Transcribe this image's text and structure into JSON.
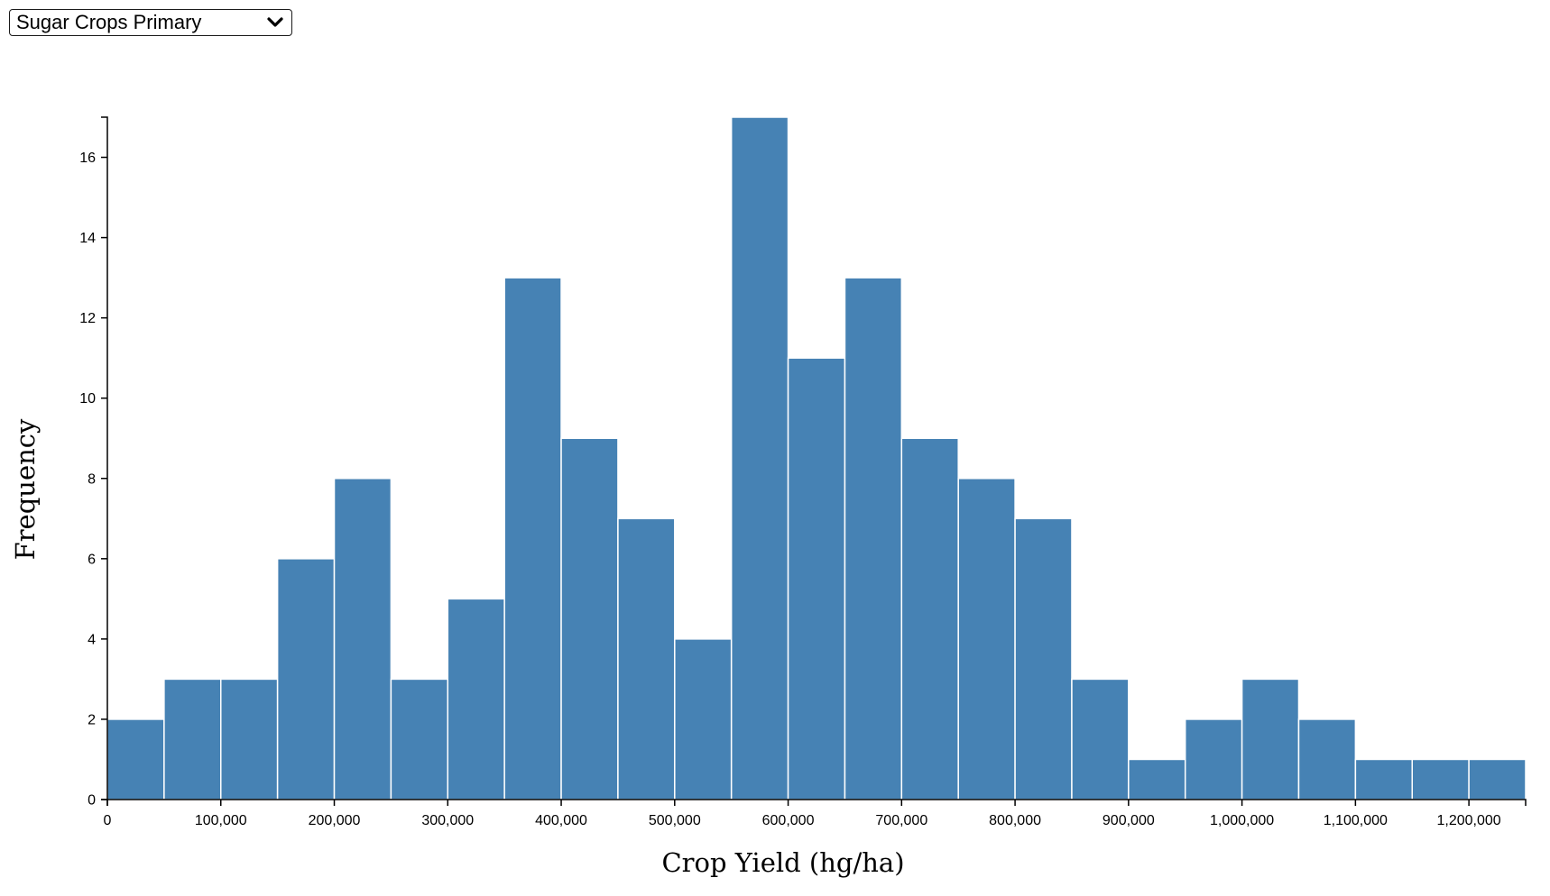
{
  "dropdown": {
    "selected": "Sugar Crops Primary",
    "icon": "chevron-down-icon"
  },
  "colors": {
    "bar": "#4682b4",
    "bar_stroke": "#ffffff",
    "axis": "#000000"
  },
  "chart_data": {
    "type": "bar",
    "subtype": "histogram",
    "xlabel": "Crop Yield (hg/ha)",
    "ylabel": "Frequency",
    "bin_width": 50000,
    "bins": [
      {
        "x0": 0,
        "x1": 50000,
        "count": 2
      },
      {
        "x0": 50000,
        "x1": 100000,
        "count": 3
      },
      {
        "x0": 100000,
        "x1": 150000,
        "count": 3
      },
      {
        "x0": 150000,
        "x1": 200000,
        "count": 6
      },
      {
        "x0": 200000,
        "x1": 250000,
        "count": 8
      },
      {
        "x0": 250000,
        "x1": 300000,
        "count": 3
      },
      {
        "x0": 300000,
        "x1": 350000,
        "count": 5
      },
      {
        "x0": 350000,
        "x1": 400000,
        "count": 13
      },
      {
        "x0": 400000,
        "x1": 450000,
        "count": 9
      },
      {
        "x0": 450000,
        "x1": 500000,
        "count": 7
      },
      {
        "x0": 500000,
        "x1": 550000,
        "count": 4
      },
      {
        "x0": 550000,
        "x1": 600000,
        "count": 17
      },
      {
        "x0": 600000,
        "x1": 650000,
        "count": 11
      },
      {
        "x0": 650000,
        "x1": 700000,
        "count": 13
      },
      {
        "x0": 700000,
        "x1": 750000,
        "count": 9
      },
      {
        "x0": 750000,
        "x1": 800000,
        "count": 8
      },
      {
        "x0": 800000,
        "x1": 850000,
        "count": 7
      },
      {
        "x0": 850000,
        "x1": 900000,
        "count": 3
      },
      {
        "x0": 900000,
        "x1": 950000,
        "count": 1
      },
      {
        "x0": 950000,
        "x1": 1000000,
        "count": 2
      },
      {
        "x0": 1000000,
        "x1": 1050000,
        "count": 3
      },
      {
        "x0": 1050000,
        "x1": 1100000,
        "count": 2
      },
      {
        "x0": 1100000,
        "x1": 1150000,
        "count": 1
      },
      {
        "x0": 1150000,
        "x1": 1200000,
        "count": 1
      },
      {
        "x0": 1200000,
        "x1": 1250000,
        "count": 1
      }
    ],
    "xlim": [
      0,
      1250000
    ],
    "ylim": [
      0,
      17
    ],
    "xticks": [
      0,
      100000,
      200000,
      300000,
      400000,
      500000,
      600000,
      700000,
      800000,
      900000,
      1000000,
      1100000,
      1200000
    ],
    "xtick_labels": [
      "0",
      "100,000",
      "200,000",
      "300,000",
      "400,000",
      "500,000",
      "600,000",
      "700,000",
      "800,000",
      "900,000",
      "1,000,000",
      "1,100,000",
      "1,200,000"
    ],
    "yticks": [
      0,
      2,
      4,
      6,
      8,
      10,
      12,
      14,
      16
    ],
    "ytick_labels": [
      "0",
      "2",
      "4",
      "6",
      "8",
      "10",
      "12",
      "14",
      "16"
    ],
    "grid": false,
    "legend": "none"
  }
}
